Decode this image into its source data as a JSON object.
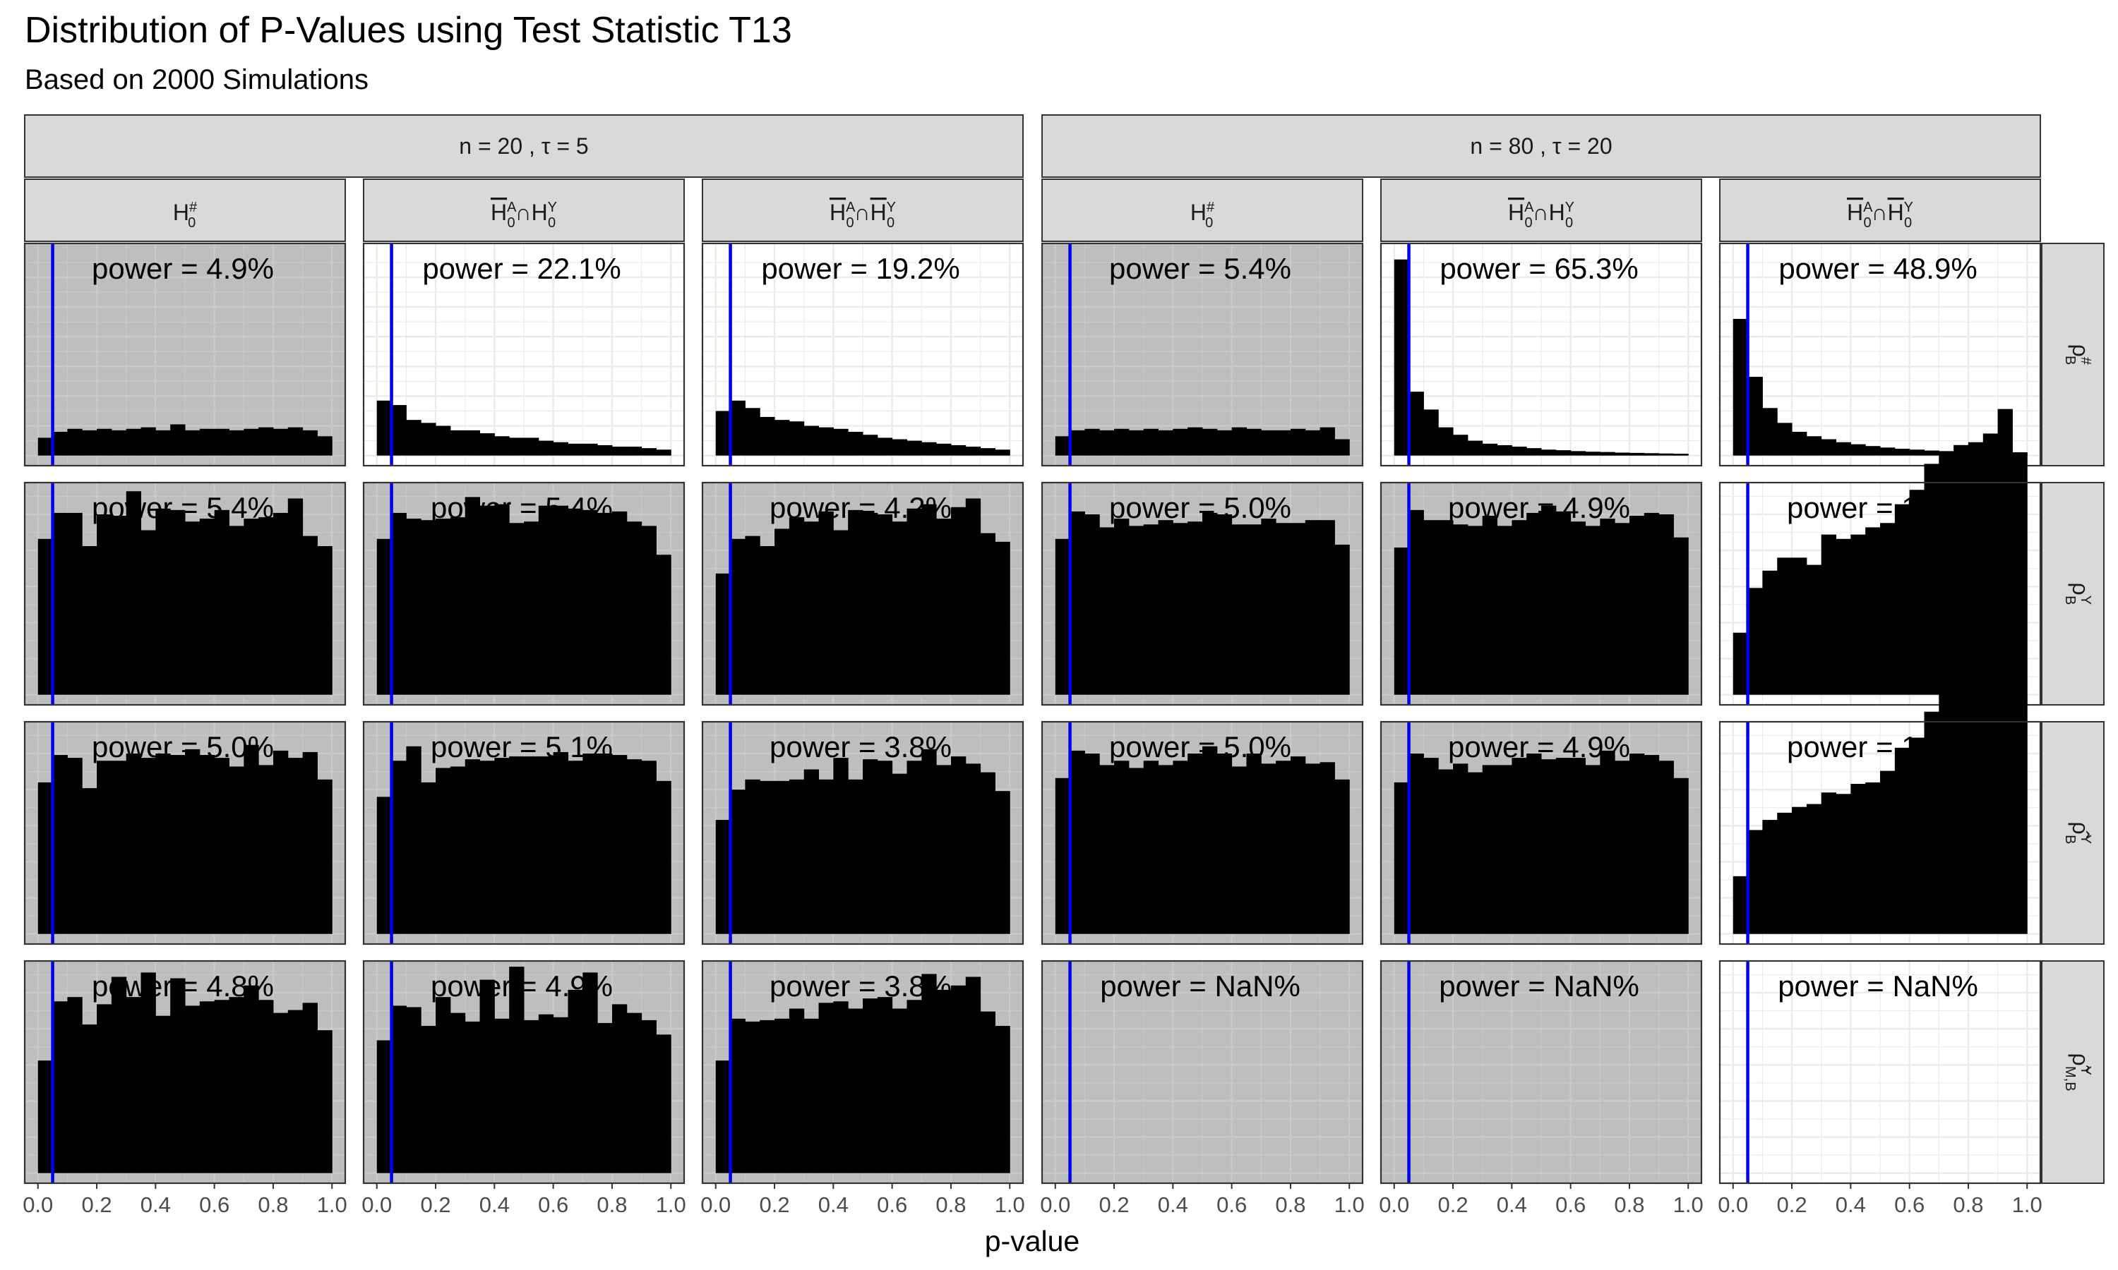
{
  "colors": {
    "null_panel": "#bebebe",
    "alt_panel": "#ffffff",
    "bar": "#000000",
    "alpha_line": "#0000ee",
    "strip_fill": "#d9d9d9",
    "grid": "#ebebeb"
  },
  "chart_data": {
    "type": "bar",
    "title": "Distribution of P-Values using Test Statistic T13",
    "subtitle": "Based on 2000 Simulations",
    "xlabel": "p-value",
    "ylabel": "",
    "x_ticks": [
      "0.0",
      "0.2",
      "0.4",
      "0.6",
      "0.8",
      "1.0"
    ],
    "xlim": [
      0,
      1
    ],
    "bins": 20,
    "alpha": 0.05,
    "power_prefix": "power = ",
    "outer_groups": [
      "n = 20 , τ = 5",
      "n = 80 , τ = 20"
    ],
    "hypotheses": [
      {
        "base": "H",
        "sub": "0",
        "sup": "#",
        "overline": false
      },
      {
        "base": "H",
        "sub": "0",
        "sup": "A",
        "overline": true,
        "connector": "∩",
        "base2": "H",
        "sub2": "0",
        "sup2": "Y",
        "overline2": false
      },
      {
        "base": "H",
        "sub": "0",
        "sup": "A",
        "overline": true,
        "connector": "∩",
        "base2": "H",
        "sub2": "0",
        "sup2": "Y",
        "overline2": true
      }
    ],
    "row_labels": [
      {
        "base": "ρ",
        "sub": "B",
        "sup": "#"
      },
      {
        "base": "ρ",
        "sub": "B",
        "sup": "Y"
      },
      {
        "base": "ρ̂",
        "sub": "B",
        "sup": "Y"
      },
      {
        "base": "ρ̃",
        "sub": "M,B",
        "sup": "Y"
      }
    ],
    "rows": [
      [
        {
          "power": "4.9%",
          "null_panel": true,
          "ymax": 680,
          "values": [
            60,
            80,
            90,
            85,
            90,
            85,
            90,
            95,
            85,
            105,
            85,
            90,
            90,
            85,
            90,
            95,
            90,
            95,
            85,
            65
          ]
        },
        {
          "power": "22.1%",
          "null_panel": false,
          "ymax": 680,
          "values": [
            185,
            170,
            120,
            110,
            100,
            85,
            85,
            75,
            65,
            60,
            60,
            50,
            45,
            40,
            40,
            35,
            30,
            30,
            25,
            20
          ]
        },
        {
          "power": "19.2%",
          "null_panel": false,
          "ymax": 680,
          "values": [
            150,
            185,
            160,
            130,
            120,
            115,
            100,
            95,
            90,
            80,
            70,
            60,
            55,
            50,
            45,
            40,
            35,
            30,
            25,
            20
          ]
        },
        {
          "power": "5.4%",
          "null_panel": true,
          "ymax": 680,
          "values": [
            65,
            85,
            90,
            85,
            90,
            85,
            90,
            85,
            90,
            95,
            90,
            85,
            95,
            90,
            85,
            85,
            90,
            85,
            95,
            55
          ]
        },
        {
          "power": "65.3%",
          "null_panel": false,
          "ymax": 680,
          "values": [
            660,
            215,
            155,
            95,
            70,
            50,
            40,
            35,
            30,
            25,
            20,
            18,
            15,
            13,
            12,
            10,
            9,
            8,
            7,
            6
          ]
        },
        {
          "power": "48.9%",
          "null_panel": false,
          "ymax": 680,
          "values": [
            460,
            265,
            160,
            110,
            80,
            65,
            55,
            45,
            38,
            32,
            27,
            23,
            20,
            17,
            15,
            13,
            11,
            10,
            9,
            8
          ]
        }
      ],
      [
        {
          "power": "5.4%",
          "null_panel": true,
          "ymax": 140,
          "values": [
            108,
            126,
            126,
            103,
            125,
            124,
            141,
            114,
            129,
            128,
            120,
            122,
            128,
            117,
            122,
            123,
            126,
            136,
            110,
            103
          ]
        },
        {
          "power": "5.4%",
          "null_panel": true,
          "ymax": 140,
          "values": [
            108,
            126,
            122,
            121,
            122,
            123,
            137,
            131,
            132,
            119,
            120,
            131,
            131,
            129,
            128,
            126,
            127,
            120,
            117,
            97
          ]
        },
        {
          "power": "4.2%",
          "null_panel": true,
          "ymax": 140,
          "values": [
            84,
            108,
            110,
            103,
            115,
            123,
            120,
            127,
            114,
            128,
            126,
            125,
            120,
            129,
            132,
            122,
            130,
            136,
            112,
            106
          ]
        },
        {
          "power": "5.0%",
          "null_panel": true,
          "ymax": 140,
          "values": [
            108,
            127,
            125,
            116,
            122,
            117,
            118,
            121,
            119,
            120,
            126,
            125,
            118,
            118,
            122,
            119,
            119,
            121,
            121,
            104
          ]
        },
        {
          "power": "4.9%",
          "null_panel": true,
          "ymax": 140,
          "values": [
            102,
            128,
            121,
            121,
            118,
            117,
            124,
            117,
            121,
            126,
            131,
            127,
            120,
            117,
            122,
            119,
            124,
            126,
            125,
            109
          ]
        },
        {
          "power": "1.6%",
          "null_panel": false,
          "ymax": 140,
          "values": [
            43,
            74,
            86,
            95,
            95,
            90,
            111,
            108,
            111,
            116,
            119,
            132,
            142,
            160,
            167,
            173,
            175,
            181,
            198,
            168
          ]
        }
      ],
      [
        {
          "power": "5.0%",
          "null_panel": true,
          "ymax": 140,
          "values": [
            105,
            124,
            122,
            101,
            120,
            120,
            125,
            122,
            125,
            124,
            128,
            124,
            122,
            116,
            131,
            117,
            127,
            122,
            126,
            107
          ]
        },
        {
          "power": "5.1%",
          "null_panel": true,
          "ymax": 140,
          "values": [
            95,
            120,
            130,
            105,
            115,
            116,
            121,
            120,
            122,
            123,
            123,
            123,
            126,
            120,
            125,
            125,
            124,
            121,
            120,
            106
          ]
        },
        {
          "power": "3.8%",
          "null_panel": true,
          "ymax": 140,
          "values": [
            79,
            100,
            107,
            106,
            106,
            107,
            114,
            107,
            122,
            107,
            121,
            120,
            111,
            120,
            128,
            117,
            123,
            118,
            112,
            99
          ]
        },
        {
          "power": "5.0%",
          "null_panel": true,
          "ymax": 140,
          "values": [
            108,
            127,
            125,
            117,
            120,
            115,
            120,
            117,
            120,
            125,
            130,
            125,
            116,
            125,
            118,
            120,
            123,
            118,
            119,
            107
          ]
        },
        {
          "power": "4.9%",
          "null_panel": true,
          "ymax": 140,
          "values": [
            105,
            125,
            122,
            114,
            118,
            112,
            117,
            117,
            122,
            125,
            121,
            122,
            122,
            117,
            127,
            120,
            125,
            124,
            120,
            108
          ]
        },
        {
          "power": "1.6%",
          "null_panel": false,
          "ymax": 140,
          "values": [
            40,
            72,
            79,
            84,
            88,
            90,
            98,
            97,
            104,
            105,
            113,
            129,
            136,
            154,
            166,
            170,
            174,
            182,
            196,
            166
          ]
        }
      ],
      [
        {
          "power": "4.8%",
          "null_panel": true,
          "ymax": 140,
          "values": [
            78,
            119,
            122,
            103,
            117,
            136,
            122,
            139,
            109,
            135,
            116,
            119,
            120,
            122,
            130,
            120,
            111,
            113,
            118,
            99
          ]
        },
        {
          "power": "4.9%",
          "null_panel": true,
          "ymax": 140,
          "values": [
            92,
            116,
            115,
            102,
            122,
            111,
            105,
            134,
            107,
            143,
            106,
            110,
            108,
            127,
            139,
            104,
            117,
            111,
            106,
            96
          ]
        },
        {
          "power": "3.8%",
          "null_panel": true,
          "ymax": 140,
          "values": [
            78,
            107,
            105,
            106,
            107,
            114,
            107,
            118,
            119,
            114,
            121,
            122,
            114,
            120,
            138,
            127,
            130,
            136,
            112,
            102
          ]
        },
        {
          "power": "NaN%",
          "null_panel": true,
          "ymax": 140,
          "values": []
        },
        {
          "power": "NaN%",
          "null_panel": true,
          "ymax": 140,
          "values": []
        },
        {
          "power": "NaN%",
          "null_panel": false,
          "ymax": 140,
          "values": []
        }
      ]
    ]
  }
}
